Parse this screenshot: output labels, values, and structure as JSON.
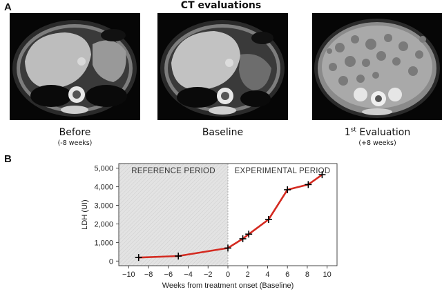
{
  "panel_a": {
    "letter": "A",
    "title": "CT evaluations",
    "scans": [
      {
        "label": "Before",
        "sublabel": "(-8 weeks)",
        "icon": "ct-scan-image"
      },
      {
        "label": "Baseline",
        "sublabel": "",
        "icon": "ct-scan-image"
      },
      {
        "label_prefix": "1",
        "label_sup": "st",
        "label_suffix": " Evaluation",
        "sublabel": "(+8 weeks)",
        "icon": "ct-scan-image"
      }
    ]
  },
  "panel_b": {
    "letter": "B"
  },
  "chart_data": {
    "type": "line",
    "xlabel": "Weeks from treatment onset (Baseline)",
    "ylabel": "LDH (UI)",
    "xlim": [
      -11,
      11
    ],
    "ylim": [
      -250,
      5250
    ],
    "x_ticks": [
      -10,
      -8,
      -6,
      -4,
      -2,
      0,
      2,
      4,
      6,
      8,
      10
    ],
    "y_ticks": [
      0,
      1000,
      2000,
      3000,
      4000,
      5000
    ],
    "x_tick_labels": [
      "−10",
      "−8",
      "−6",
      "−4",
      "−2",
      "0",
      "2",
      "4",
      "6",
      "8",
      "10"
    ],
    "y_tick_labels": [
      "0",
      "1,000",
      "2,000",
      "3,000",
      "4,000",
      "5,000"
    ],
    "regions": [
      {
        "label": "REFERENCE PERIOD",
        "x_range": [
          -11,
          0
        ],
        "shaded": true
      },
      {
        "label": "EXPERIMENTAL PERIOD",
        "x_range": [
          0,
          11
        ],
        "shaded": false
      }
    ],
    "series": [
      {
        "color": "#d42a20",
        "marker": "+",
        "x": [
          -9,
          -5,
          0,
          1.5,
          2.1,
          4.1,
          6,
          8.1,
          9.5
        ],
        "y": [
          190,
          270,
          700,
          1200,
          1450,
          2240,
          3840,
          4120,
          4650
        ]
      }
    ],
    "grid": false
  }
}
